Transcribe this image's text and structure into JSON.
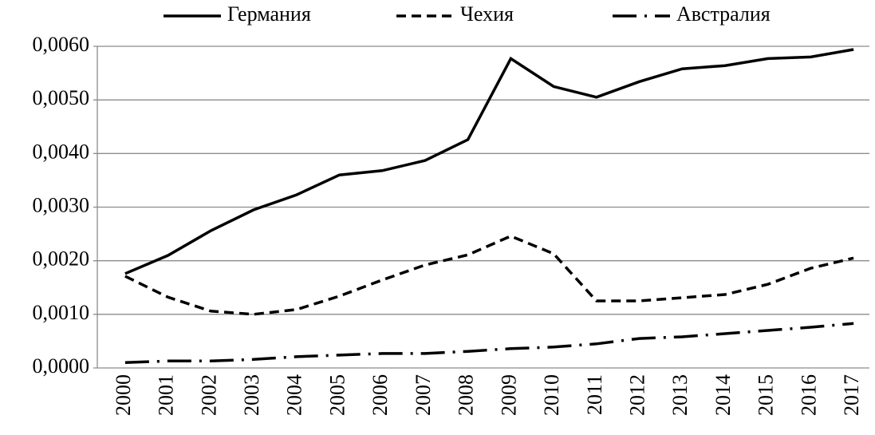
{
  "chart_data": {
    "type": "line",
    "categories": [
      "2000",
      "2001",
      "2002",
      "2003",
      "2004",
      "2005",
      "2006",
      "2007",
      "2008",
      "2009",
      "2010",
      "2011",
      "2012",
      "2013",
      "2014",
      "2015",
      "2016",
      "2017"
    ],
    "series": [
      {
        "name": "Германия",
        "color": "#000000",
        "dash": "solid",
        "values": [
          0.00176,
          0.0021,
          0.00256,
          0.00295,
          0.00323,
          0.0036,
          0.00368,
          0.00387,
          0.00426,
          0.00577,
          0.00525,
          0.00505,
          0.00534,
          0.00558,
          0.00564,
          0.00577,
          0.0058,
          0.00594
        ]
      },
      {
        "name": "Чехия",
        "color": "#000000",
        "dash": "dashed",
        "values": [
          0.00171,
          0.00132,
          0.00106,
          0.001,
          0.00109,
          0.00134,
          0.00164,
          0.00192,
          0.00211,
          0.00246,
          0.00213,
          0.00125,
          0.00125,
          0.00131,
          0.00137,
          0.00156,
          0.00186,
          0.00205
        ]
      },
      {
        "name": "Австралия",
        "color": "#000000",
        "dash": "long-dash-dot",
        "values": [
          0.0001,
          0.00013,
          0.00013,
          0.00016,
          0.00021,
          0.00024,
          0.00027,
          0.00027,
          0.00031,
          0.00036,
          0.00039,
          0.00045,
          0.00055,
          0.00058,
          0.00064,
          0.0007,
          0.00076,
          0.00083
        ]
      }
    ],
    "ylim": [
      0,
      0.006
    ],
    "yticks": [
      {
        "value": 0,
        "label": "0,0000"
      },
      {
        "value": 0.001,
        "label": "0,0010"
      },
      {
        "value": 0.002,
        "label": "0,0020"
      },
      {
        "value": 0.003,
        "label": "0,0030"
      },
      {
        "value": 0.004,
        "label": "0,0040"
      },
      {
        "value": 0.005,
        "label": "0,0050"
      },
      {
        "value": 0.006,
        "label": "0,0060"
      }
    ],
    "grid": true,
    "legend": "top"
  }
}
